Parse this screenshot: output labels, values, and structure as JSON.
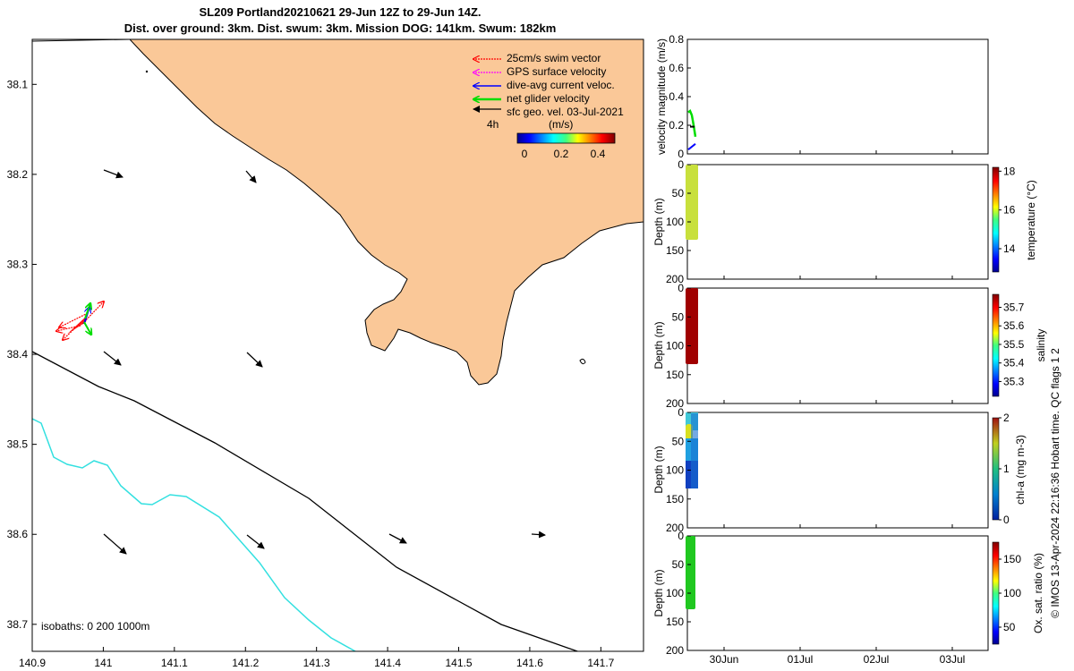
{
  "title": {
    "line1": "SL209 Portland20210621 29-Jun 12Z to 29-Jun 14Z.",
    "line2": "Dist. over ground: 3km. Dist. swum: 3km. Mission DOG: 141km. Swum: 182km"
  },
  "credit": "© IMOS 13-Apr-2024 22:16:36 Hobart time. QC flags 1  2",
  "colors": {
    "land": "#fac898",
    "isobath_200": "#000000",
    "isobath_1000": "#33e0e0",
    "swim_vector": "#ff0000",
    "gps_velocity": "#ff00ff",
    "dive_avg": "#0000ff",
    "net_glider": "#00dd00",
    "sfc_geo": "#000000",
    "temperature_profile": "#c8e03c",
    "salinity_profile": "#a00000",
    "oxygen_profile": "#20c820"
  },
  "legend": {
    "items": [
      {
        "label": "25cm/s swim vector",
        "color": "#ff0000",
        "style": "dotted"
      },
      {
        "label": "GPS surface velocity",
        "color": "#ff00ff",
        "style": "dotted"
      },
      {
        "label": "dive-avg current veloc.",
        "color": "#0000ff",
        "style": "solid"
      },
      {
        "label": "net glider velocity",
        "color": "#00dd00",
        "style": "thick"
      },
      {
        "label": "sfc geo. vel. 03-Jul-2021",
        "color": "#000000",
        "style": "solid"
      }
    ],
    "time_step": "4h",
    "colorbar_unit": "(m/s)",
    "colorbar_ticks": [
      "0",
      "0.2",
      "0.4"
    ]
  },
  "map": {
    "isobath_label": "isobaths: 0   200  1000m",
    "lon_ticks": [
      "140.9",
      "141",
      "141.1",
      "141.2",
      "141.3",
      "141.4",
      "141.5",
      "141.6",
      "141.7"
    ],
    "lat_ticks": [
      "38.1",
      "38.2",
      "38.3",
      "38.4",
      "38.5",
      "38.6",
      "38.7"
    ],
    "xlim": [
      140.9,
      141.76
    ],
    "ylim": [
      38.05,
      38.73
    ]
  },
  "chart_data": [
    {
      "type": "line",
      "panel": "velocity",
      "ylabel": "velocity magnitude (m/s)",
      "ylim": [
        0,
        0.8
      ],
      "yticks": [
        "0",
        "0.2",
        "0.4",
        "0.6",
        "0.8"
      ],
      "series": [
        {
          "name": "net glider velocity",
          "color": "#00dd00",
          "x": [
            0.0,
            0.02,
            0.04,
            0.06,
            0.08
          ],
          "values": [
            0.29,
            0.3,
            0.27,
            0.2,
            0.12
          ]
        },
        {
          "name": "dive-avg current veloc.",
          "color": "#0000ff",
          "x": [
            0.0,
            0.04,
            0.08
          ],
          "values": [
            0.03,
            0.05,
            0.07
          ]
        },
        {
          "name": "sfc geo. vel. 03-Jul-2021",
          "color": "#000000",
          "x": [
            0.02,
            0.07
          ],
          "values": [
            0.19,
            0.19
          ]
        }
      ]
    },
    {
      "type": "scatter",
      "panel": "temperature",
      "ylabel": "Depth (m)",
      "clabel": "temperature (°C)",
      "ylim": [
        0,
        200
      ],
      "yticks": [
        "0",
        "50",
        "100",
        "150",
        "200"
      ],
      "depth_range": [
        0,
        132
      ],
      "value_range": [
        15.9,
        16.4
      ],
      "clim": [
        12.8,
        18.2
      ],
      "cticks": [
        "14",
        "16",
        "18"
      ]
    },
    {
      "type": "scatter",
      "panel": "salinity",
      "ylabel": "Depth (m)",
      "clabel": "salinity",
      "ylim": [
        0,
        200
      ],
      "yticks": [
        "0",
        "50",
        "100",
        "150",
        "200"
      ],
      "depth_range": [
        0,
        132
      ],
      "value_range": [
        35.75,
        35.8
      ],
      "clim": [
        35.22,
        35.77
      ],
      "cticks": [
        "35.3",
        "35.4",
        "35.5",
        "35.6",
        "35.7"
      ]
    },
    {
      "type": "scatter",
      "panel": "chlorophyll",
      "ylabel": "Depth (m)",
      "clabel": "chl-a (mg m-3)",
      "ylim": [
        0,
        200
      ],
      "yticks": [
        "0",
        "50",
        "100",
        "150",
        "200"
      ],
      "depth_range": [
        0,
        132
      ],
      "value_range": [
        0.3,
        1.5
      ],
      "clim": [
        0,
        2
      ],
      "cticks": [
        "0",
        "1",
        "2"
      ]
    },
    {
      "type": "scatter",
      "panel": "oxygen",
      "ylabel": "Depth (m)",
      "clabel": "Ox. sat. ratio (%)",
      "ylim": [
        0,
        200
      ],
      "yticks": [
        "0",
        "50",
        "100",
        "150",
        "200"
      ],
      "depth_range": [
        0,
        125
      ],
      "value_range": [
        95,
        100
      ],
      "clim": [
        25,
        175
      ],
      "cticks": [
        "50",
        "100",
        "150"
      ],
      "x_ticks": [
        "30Jun",
        "01Jul",
        "02Jul",
        "03Jul"
      ]
    }
  ]
}
